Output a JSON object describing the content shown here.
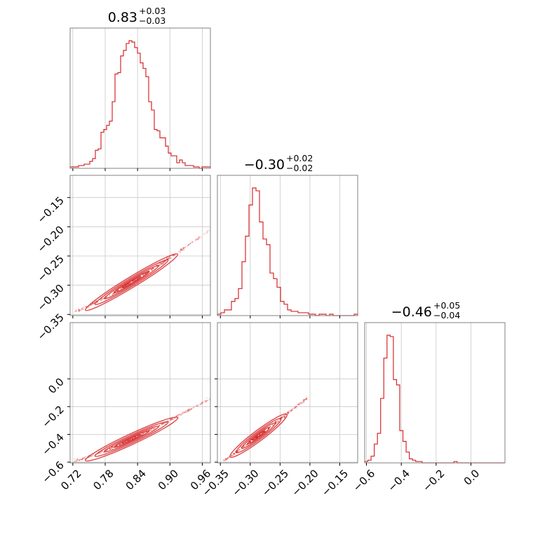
{
  "chart_data": {
    "type": "corner",
    "color": "#d62728",
    "parameters": [
      {
        "title_value": "0.83",
        "title_plus": "+0.03",
        "title_minus": "−0.03",
        "hist_range": [
          0.715,
          0.975
        ],
        "hist_counts": [
          1,
          1,
          1,
          2,
          2,
          3,
          3,
          5,
          7,
          13,
          14,
          26,
          28,
          31,
          34,
          48,
          68,
          69,
          81,
          85,
          90,
          92,
          91,
          87,
          83,
          76,
          72,
          66,
          48,
          42,
          28,
          27,
          22,
          22,
          16,
          11,
          9,
          9,
          4,
          6,
          4,
          2,
          2,
          2,
          1,
          1,
          0,
          1,
          1,
          1
        ],
        "ticks": [
          0.72,
          0.78,
          0.84,
          0.9,
          0.96
        ],
        "tick_labels": [
          "0.72",
          "0.78",
          "0.84",
          "0.90",
          "0.96"
        ]
      },
      {
        "title_value": "−0.30",
        "title_plus": "+0.02",
        "title_minus": "−0.02",
        "hist_range": [
          -0.355,
          -0.12
        ],
        "hist_counts": [
          1,
          2,
          4,
          4,
          10,
          12,
          19,
          38,
          56,
          78,
          90,
          88,
          66,
          54,
          50,
          30,
          26,
          20,
          10,
          8,
          4,
          3,
          3,
          2,
          2,
          2,
          1,
          1,
          0,
          1,
          1,
          0,
          1,
          0,
          0,
          0,
          0,
          0,
          0,
          1
        ],
        "ticks": [
          -0.35,
          -0.3,
          -0.25,
          -0.2,
          -0.15
        ],
        "tick_labels": [
          "−0.35",
          "−0.30",
          "−0.25",
          "−0.20",
          "−0.15"
        ]
      },
      {
        "title_value": "−0.46",
        "title_plus": "+0.05",
        "title_minus": "−0.04",
        "hist_range": [
          -0.61,
          0.195
        ],
        "hist_counts": [
          1,
          2,
          5,
          14,
          22,
          48,
          78,
          95,
          94,
          62,
          58,
          24,
          16,
          8,
          3,
          2,
          1,
          1,
          0,
          0,
          0,
          0,
          0,
          0,
          0,
          0,
          0,
          0,
          1,
          0,
          0,
          0,
          0,
          0,
          0,
          0,
          0,
          0,
          0,
          0,
          0,
          0,
          0,
          0
        ],
        "ticks": [
          -0.6,
          -0.4,
          -0.2,
          0.0
        ],
        "tick_labels": [
          "−0.6",
          "−0.4",
          "−0.2",
          "0.0"
        ]
      }
    ],
    "y_axes": [
      {
        "row": 1,
        "range": [
          -0.352,
          -0.112
        ],
        "ticks": [
          -0.35,
          -0.3,
          -0.25,
          -0.2,
          -0.15
        ],
        "tick_labels": [
          "−0.35",
          "−0.30",
          "−0.25",
          "−0.20",
          "−0.15"
        ]
      },
      {
        "row": 2,
        "range": [
          -0.605,
          0.405
        ],
        "ticks": [
          -0.6,
          -0.4,
          -0.2,
          0.0
        ],
        "tick_labels": [
          "−0.6",
          "−0.4",
          "−0.2",
          "0.0"
        ]
      }
    ],
    "scatter_ranges": {
      "p0": [
        0.723,
        0.975
      ],
      "p1": [
        -0.345,
        -0.205
      ],
      "p2": [
        -0.59,
        -0.14
      ]
    },
    "grid": true
  }
}
